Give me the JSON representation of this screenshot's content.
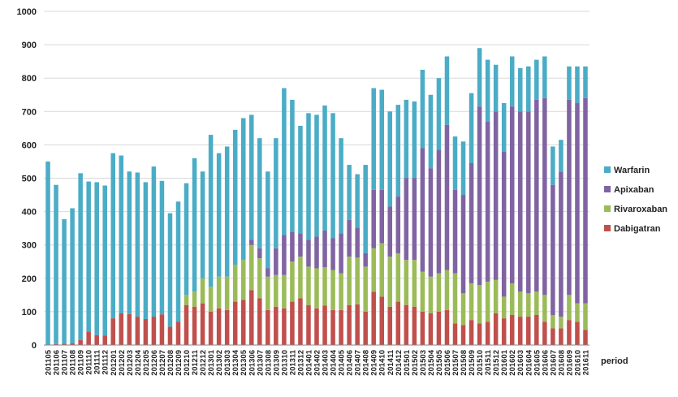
{
  "chart_data": {
    "type": "bar",
    "stacked": true,
    "xlabel": "period",
    "ylabel": "",
    "title": "",
    "ylim": [
      0,
      1000
    ],
    "yticks": [
      0,
      100,
      200,
      300,
      400,
      500,
      600,
      700,
      800,
      900,
      1000
    ],
    "grid": true,
    "legend_position": "right",
    "categories": [
      "201105",
      "201106",
      "201107",
      "201108",
      "201109",
      "201110",
      "201111",
      "201112",
      "201201",
      "201202",
      "201203",
      "201204",
      "201205",
      "201206",
      "201207",
      "201208",
      "201209",
      "201210",
      "201211",
      "201212",
      "201301",
      "201302",
      "201303",
      "201304",
      "201305",
      "201306",
      "201307",
      "201308",
      "201309",
      "201310",
      "201311",
      "201312",
      "201401",
      "201402",
      "201403",
      "201404",
      "201405",
      "201406",
      "201407",
      "201408",
      "201409",
      "201410",
      "201411",
      "201412",
      "201501",
      "201502",
      "201503",
      "201504",
      "201505",
      "201506",
      "201507",
      "201508",
      "201509",
      "201510",
      "201511",
      "201512",
      "201601",
      "201602",
      "201603",
      "201604",
      "201605",
      "201606",
      "201607",
      "201608",
      "201609",
      "201610",
      "201611"
    ],
    "series": [
      {
        "name": "Dabigatran",
        "color": "#c0504d",
        "values": [
          0,
          3,
          4,
          5,
          15,
          40,
          30,
          28,
          80,
          95,
          93,
          85,
          78,
          85,
          92,
          55,
          70,
          120,
          115,
          125,
          100,
          110,
          105,
          130,
          135,
          165,
          140,
          105,
          115,
          110,
          130,
          140,
          120,
          110,
          118,
          105,
          105,
          120,
          122,
          100,
          160,
          145,
          115,
          130,
          120,
          115,
          100,
          95,
          100,
          105,
          65,
          60,
          75,
          65,
          70,
          95,
          80,
          90,
          85,
          85,
          90,
          70,
          50,
          50,
          75,
          70,
          45
        ]
      },
      {
        "name": "Rivaroxaban",
        "color": "#9bbb59",
        "values": [
          0,
          0,
          0,
          0,
          0,
          0,
          0,
          0,
          0,
          0,
          0,
          0,
          0,
          0,
          0,
          0,
          0,
          30,
          45,
          75,
          75,
          95,
          100,
          110,
          120,
          135,
          120,
          100,
          95,
          100,
          120,
          125,
          115,
          120,
          115,
          120,
          110,
          145,
          140,
          135,
          130,
          160,
          150,
          145,
          135,
          140,
          120,
          110,
          115,
          120,
          150,
          95,
          110,
          115,
          120,
          100,
          65,
          95,
          75,
          70,
          70,
          80,
          40,
          35,
          75,
          55,
          80
        ]
      },
      {
        "name": "Apixaban",
        "color": "#8064a2",
        "values": [
          0,
          0,
          0,
          0,
          0,
          0,
          0,
          0,
          0,
          0,
          0,
          0,
          0,
          0,
          0,
          0,
          0,
          0,
          0,
          0,
          0,
          0,
          0,
          0,
          0,
          15,
          30,
          25,
          80,
          120,
          90,
          70,
          80,
          95,
          110,
          95,
          120,
          110,
          90,
          40,
          175,
          160,
          150,
          170,
          245,
          245,
          370,
          325,
          370,
          435,
          250,
          295,
          360,
          535,
          480,
          505,
          435,
          530,
          540,
          545,
          575,
          590,
          390,
          435,
          585,
          600,
          615
        ]
      },
      {
        "name": "Warfarin",
        "color": "#4bacc6",
        "values": [
          550,
          477,
          373,
          405,
          500,
          450,
          458,
          450,
          495,
          473,
          427,
          432,
          410,
          450,
          400,
          340,
          360,
          335,
          400,
          320,
          455,
          370,
          390,
          405,
          425,
          375,
          330,
          290,
          330,
          440,
          395,
          322,
          380,
          365,
          375,
          375,
          285,
          165,
          160,
          265,
          305,
          300,
          285,
          275,
          235,
          230,
          235,
          220,
          215,
          205,
          160,
          160,
          210,
          175,
          185,
          140,
          145,
          150,
          130,
          135,
          120,
          125,
          115,
          95,
          100,
          110,
          95
        ]
      }
    ]
  }
}
